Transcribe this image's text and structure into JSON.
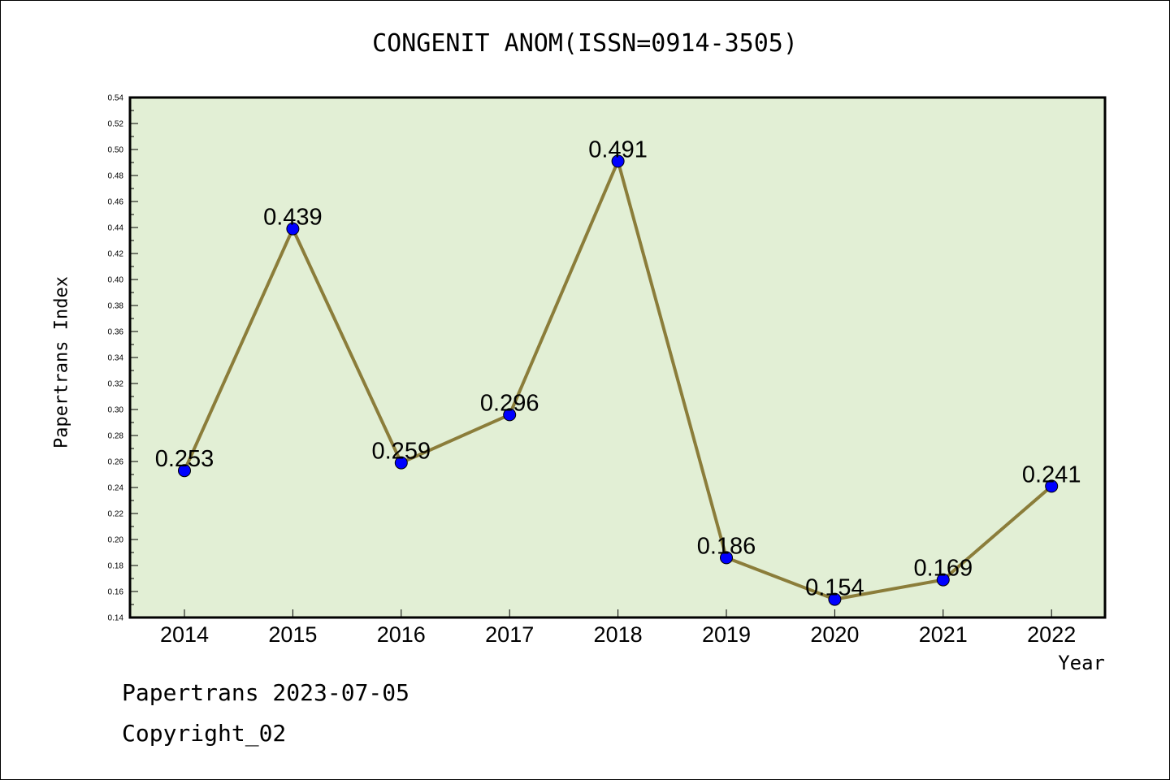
{
  "chart_data": {
    "type": "line",
    "title": "CONGENIT ANOM(ISSN=0914-3505)",
    "xlabel": "Year",
    "ylabel": "Papertrans Index",
    "categories": [
      "2014",
      "2015",
      "2016",
      "2017",
      "2018",
      "2019",
      "2020",
      "2021",
      "2022"
    ],
    "values": [
      0.253,
      0.439,
      0.259,
      0.296,
      0.491,
      0.186,
      0.154,
      0.169,
      0.241
    ],
    "data_labels": [
      "0.253",
      "0.439",
      "0.259",
      "0.296",
      "0.491",
      "0.186",
      "0.154",
      "0.169",
      "0.241"
    ],
    "ylim": [
      0.14,
      0.54
    ],
    "ytick_step": 0.02,
    "grid": false,
    "colors": {
      "plot_background": "#e2efd5",
      "line": "#8b7d3a",
      "marker": "#0000ff"
    }
  },
  "footer": {
    "line1": "Papertrans 2023-07-05",
    "line2": "Copyright_02"
  }
}
